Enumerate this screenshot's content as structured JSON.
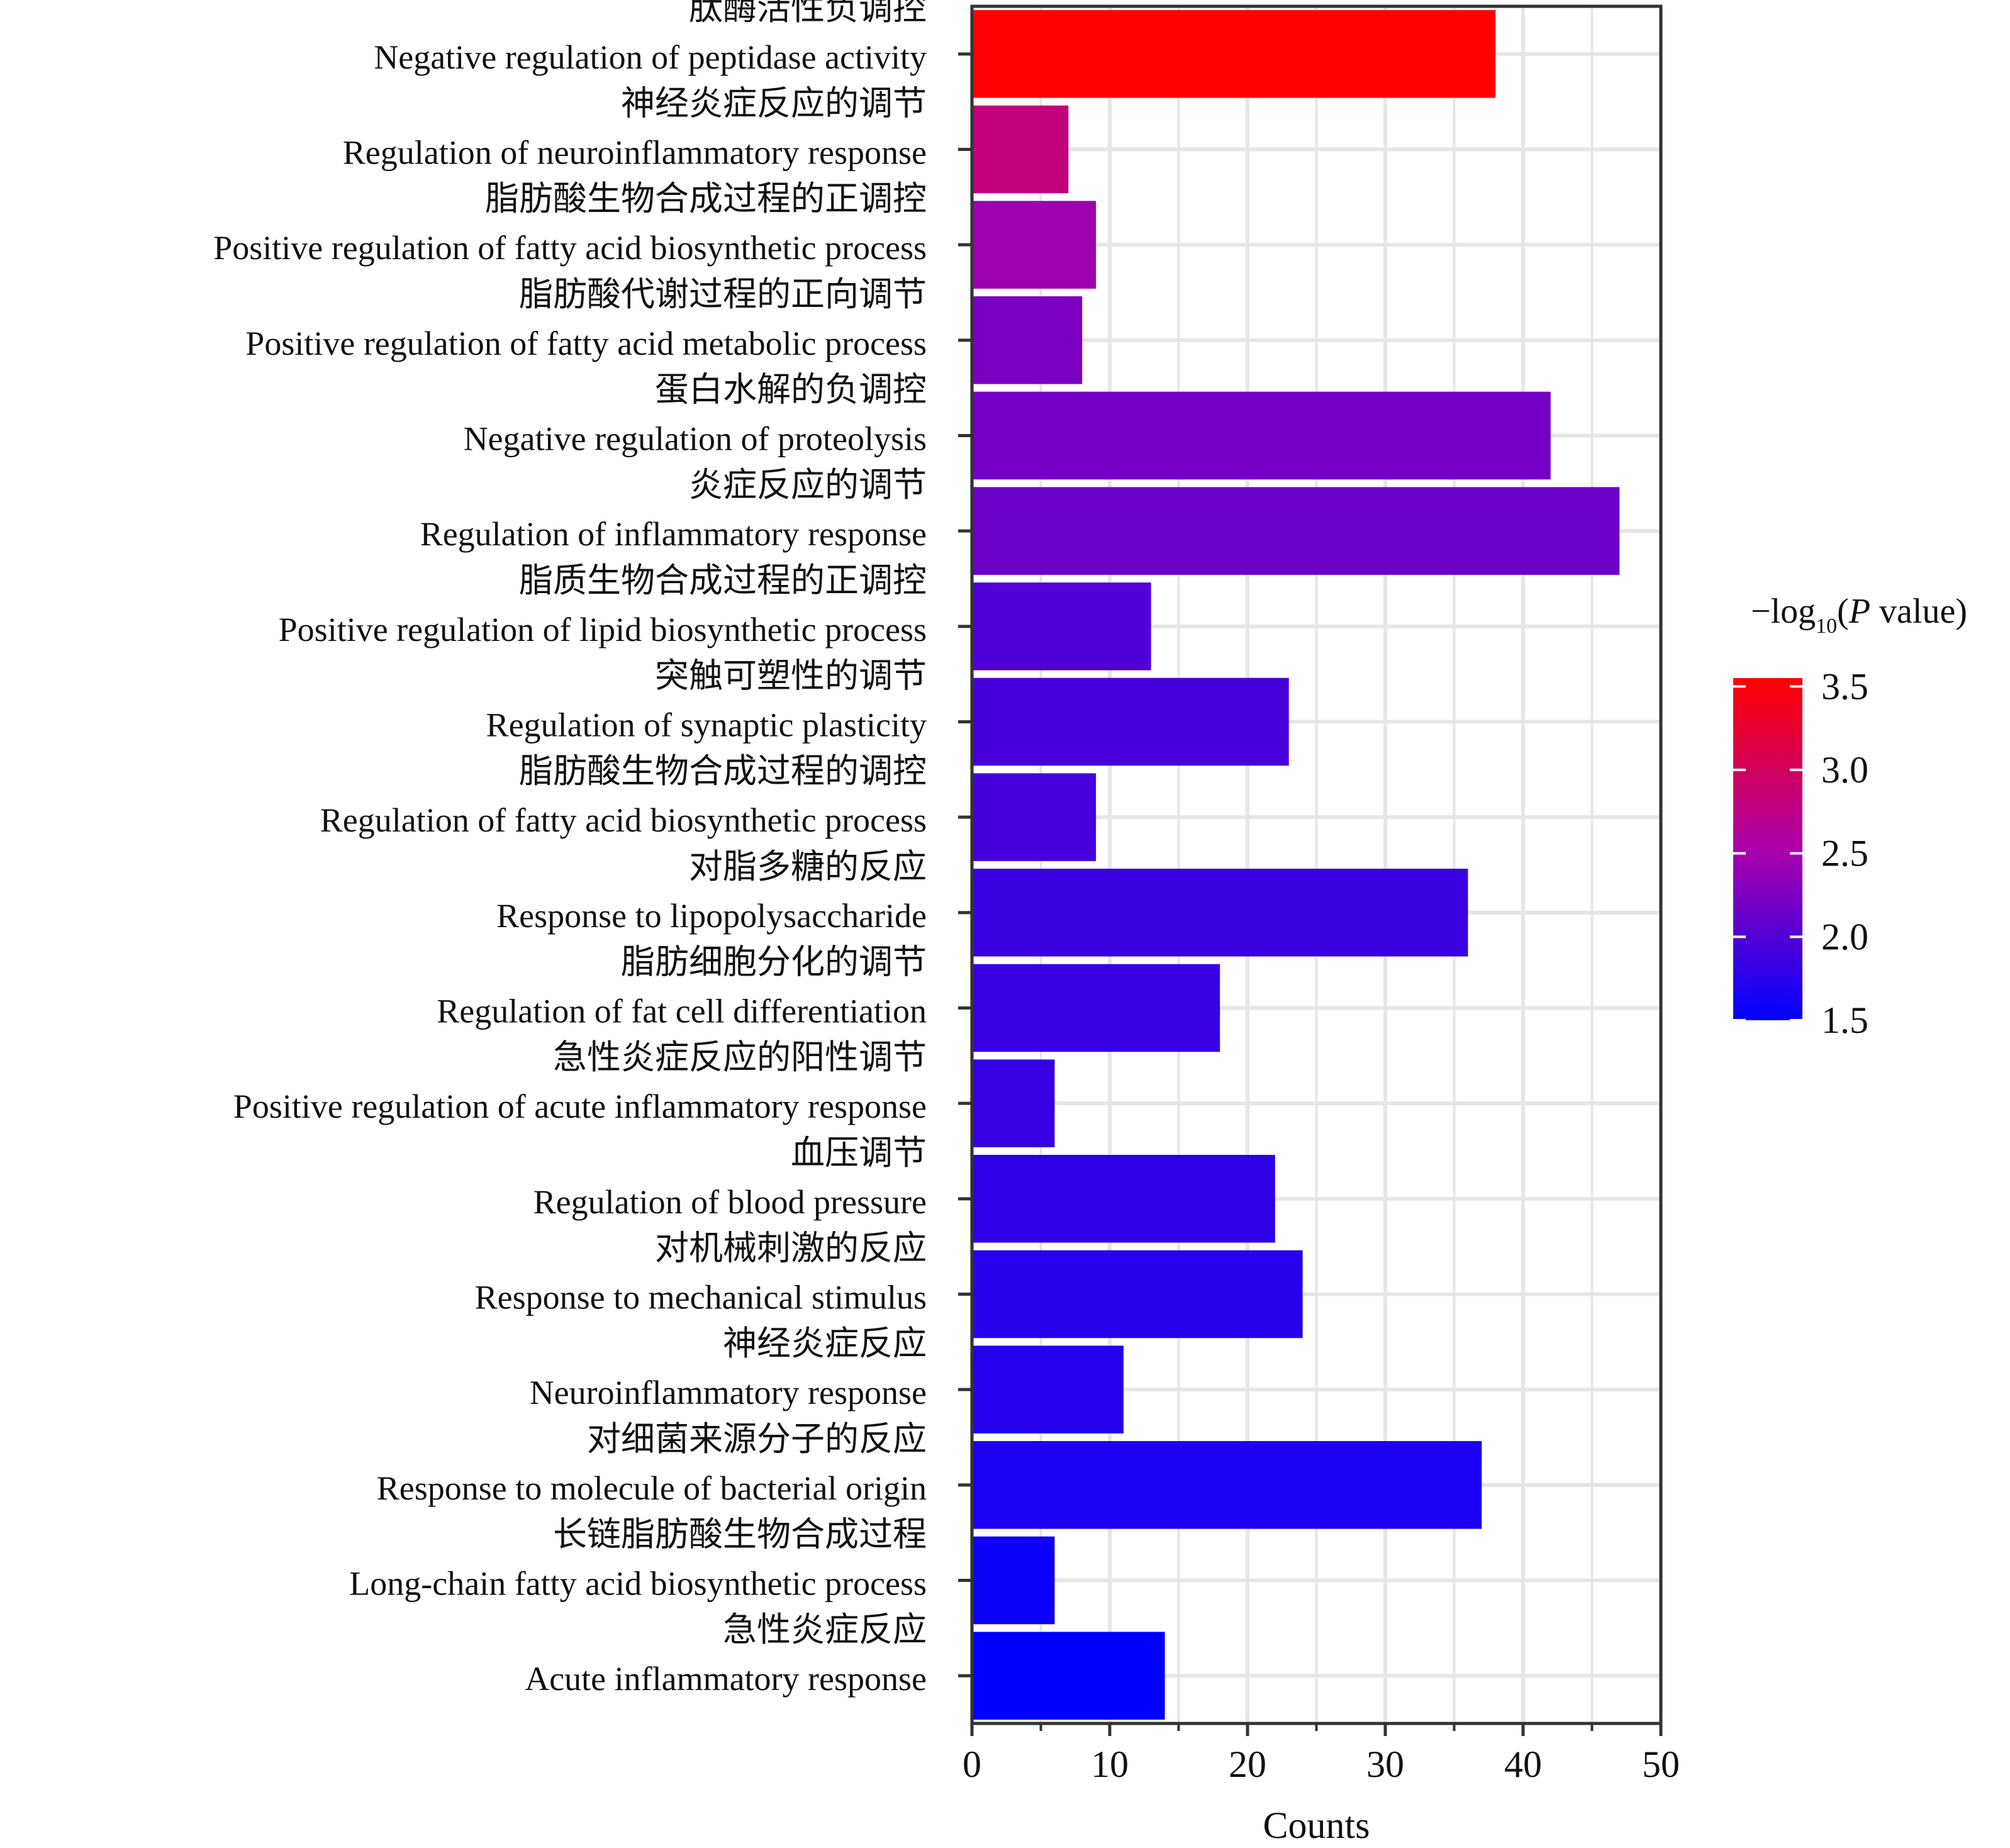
{
  "chart_data": {
    "type": "bar",
    "orientation": "horizontal",
    "xlabel": "Counts",
    "xlim": [
      0,
      50
    ],
    "x_ticks": [
      0,
      10,
      20,
      30,
      40,
      50
    ],
    "grid": true,
    "categories": [
      {
        "zh": "肽酶活性负调控",
        "en": "Negative regulation of peptidase activity",
        "count": 38,
        "neg_log10_p": 3.55
      },
      {
        "zh": "神经炎症反应的调节",
        "en": "Regulation of neuroinflammatory response",
        "count": 7,
        "neg_log10_p": 2.8
      },
      {
        "zh": "脂肪酸生物合成过程的正调控",
        "en": "Positive regulation of fatty acid biosynthetic process",
        "count": 9,
        "neg_log10_p": 2.45
      },
      {
        "zh": "脂肪酸代谢过程的正向调节",
        "en": "Positive regulation of fatty acid metabolic process",
        "count": 8,
        "neg_log10_p": 2.25
      },
      {
        "zh": "蛋白水解的负调控",
        "en": "Negative regulation of proteolysis",
        "count": 42,
        "neg_log10_p": 2.2
      },
      {
        "zh": "炎症反应的调节",
        "en": "Regulation of inflammatory response",
        "count": 47,
        "neg_log10_p": 2.15
      },
      {
        "zh": "脂质生物合成过程的正调控",
        "en": "Positive regulation of lipid biosynthetic process",
        "count": 13,
        "neg_log10_p": 1.98
      },
      {
        "zh": "突触可塑性的调节",
        "en": "Regulation of synaptic plasticity",
        "count": 23,
        "neg_log10_p": 1.93
      },
      {
        "zh": "脂肪酸生物合成过程的调控",
        "en": "Regulation of fatty acid biosynthetic process",
        "count": 9,
        "neg_log10_p": 1.92
      },
      {
        "zh": "对脂多糖的反应",
        "en": "Response to lipopolysaccharide",
        "count": 36,
        "neg_log10_p": 1.85
      },
      {
        "zh": "脂肪细胞分化的调节",
        "en": "Regulation of fat cell differentiation",
        "count": 18,
        "neg_log10_p": 1.84
      },
      {
        "zh": "急性炎症反应的阳性调节",
        "en": "Positive regulation of acute inflammatory response",
        "count": 6,
        "neg_log10_p": 1.82
      },
      {
        "zh": "血压调节",
        "en": "Regulation of blood pressure",
        "count": 22,
        "neg_log10_p": 1.78
      },
      {
        "zh": "对机械刺激的反应",
        "en": "Response to mechanical stimulus",
        "count": 24,
        "neg_log10_p": 1.74
      },
      {
        "zh": "神经炎症反应",
        "en": "Neuroinflammatory response",
        "count": 11,
        "neg_log10_p": 1.72
      },
      {
        "zh": "对细菌来源分子的反应",
        "en": "Response to molecule of bacterial origin",
        "count": 37,
        "neg_log10_p": 1.66
      },
      {
        "zh": "长链脂肪酸生物合成过程",
        "en": "Long-chain fatty acid biosynthetic process",
        "count": 6,
        "neg_log10_p": 1.58
      },
      {
        "zh": "急性炎症反应",
        "en": "Acute inflammatory response",
        "count": 14,
        "neg_log10_p": 1.5
      }
    ],
    "color_scale": {
      "title_prefix": "−log",
      "title_subscript": "10",
      "title_open": "(",
      "title_italic": "P",
      "title_rest": " value)",
      "range": [
        1.5,
        3.55
      ],
      "ticks": [
        3.5,
        3.0,
        2.5,
        2.0,
        1.5
      ],
      "tick_labels": [
        "3.5",
        "3.0",
        "2.5",
        "2.0",
        "1.5"
      ],
      "low_color": "#0000ff",
      "mid_color": "#aa00aa",
      "high_color": "#ff0000"
    }
  }
}
